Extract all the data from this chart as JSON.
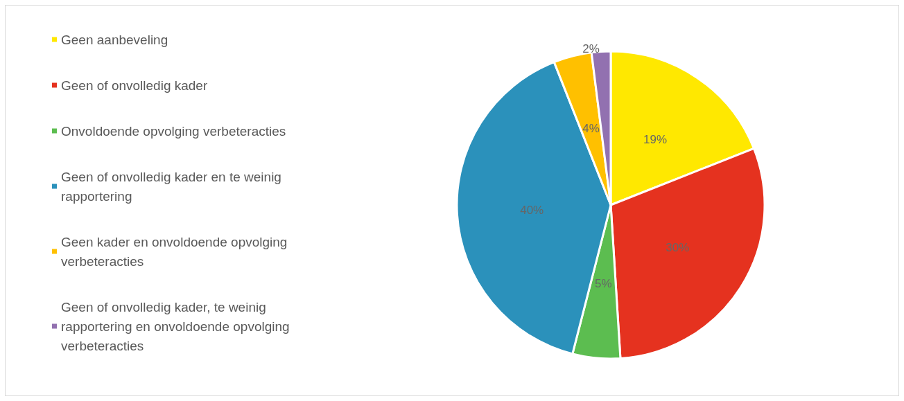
{
  "chart_data": {
    "type": "pie",
    "categories": [
      "Geen aanbeveling",
      "Geen of onvolledig kader",
      "Onvoldoende opvolging verbeteracties",
      "Geen of onvolledig kader en te weinig rapportering",
      "Geen kader en onvoldoende opvolging verbeteracties",
      "Geen of onvolledig kader, te weinig rapportering en onvoldoende opvolging verbeteracties"
    ],
    "values": [
      19,
      30,
      5,
      40,
      4,
      2
    ],
    "colors": [
      "#ffe800",
      "#e5321f",
      "#5cbd50",
      "#2b91bb",
      "#ffc000",
      "#9271b0"
    ],
    "value_labels": [
      "19%",
      "30%",
      "5%",
      "40%",
      "4%",
      "2%"
    ],
    "legend": "left"
  }
}
